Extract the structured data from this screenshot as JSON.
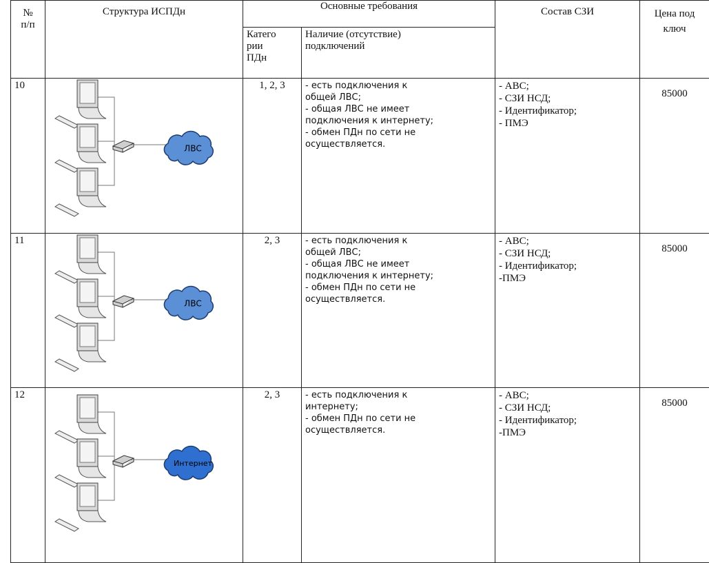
{
  "table": {
    "header": {
      "number": [
        "№",
        "п/п"
      ],
      "structure": "Структура ИСПДн",
      "requirements": "Основные требования",
      "categories": [
        "Катего",
        "рии",
        "ПДн"
      ],
      "connections": [
        "Наличие (отсутствие)",
        "подключений"
      ],
      "szi": "Состав СЗИ",
      "price": [
        "Цена под",
        "ключ"
      ]
    },
    "rows": [
      {
        "number": "10",
        "cloud": "ЛВС",
        "categories": "1, 2, 3",
        "connections": [
          "- есть подключения к",
          "общей ЛВС;",
          "- общая ЛВС не имеет",
          "подключения к интернету;",
          "- обмен ПДн по сети не",
          "осуществляется."
        ],
        "szi": [
          "- АВС;",
          "- СЗИ НСД;",
          "- Идентификатор;",
          "- ПМЭ"
        ],
        "price": 85000
      },
      {
        "number": "11",
        "cloud": "ЛВС",
        "categories": "2, 3",
        "connections": [
          "- есть подключения к",
          "общей ЛВС;",
          "- общая ЛВС не имеет",
          "подключения к интернету;",
          "- обмен ПДн по сети не",
          "осуществляется."
        ],
        "szi": [
          "- АВС;",
          "- СЗИ НСД;",
          "- Идентификатор;",
          "-ПМЭ"
        ],
        "price": 85000
      },
      {
        "number": "12",
        "cloud": "Интернет",
        "categories": "2, 3",
        "connections": [
          "- есть подключения к",
          "интернету;",
          "- обмен ПДн по сети не",
          "осуществляется."
        ],
        "szi": [
          "- АВС;",
          "- СЗИ НСД;",
          "- Идентификатор;",
          "-ПМЭ"
        ],
        "price": 85000
      }
    ]
  }
}
